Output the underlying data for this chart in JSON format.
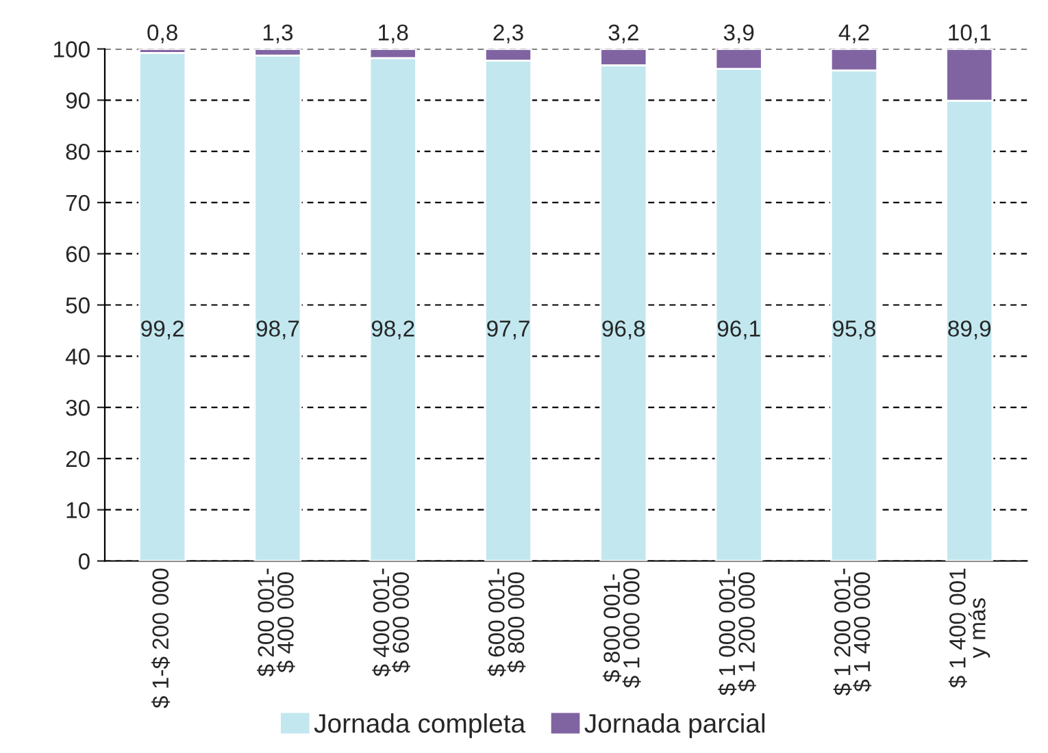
{
  "chart_data": {
    "type": "bar",
    "stacked": true,
    "categories": [
      "$ 1-$ 200 000",
      "$ 200 001-\n$ 400 000",
      "$ 400 001-\n$ 600 000",
      "$ 600 001-\n$ 800 000",
      "$ 800 001-\n$ 1 000 000",
      "$ 1 000 001-\n$ 1 200 000",
      "$ 1 200 001-\n$ 1 400 000",
      "$ 1 400 001\ny más"
    ],
    "series": [
      {
        "name": "Jornada completa",
        "color": "#c2e7ef",
        "values": [
          99.2,
          98.7,
          98.2,
          97.7,
          96.8,
          96.1,
          95.8,
          89.9
        ],
        "value_labels": [
          "99,2",
          "98,7",
          "98,2",
          "97,7",
          "96,8",
          "96,1",
          "95,8",
          "89,9"
        ]
      },
      {
        "name": "Jornada parcial",
        "color": "#8064a2",
        "values": [
          0.8,
          1.3,
          1.8,
          2.3,
          3.2,
          3.9,
          4.2,
          10.1
        ],
        "value_labels": [
          "0,8",
          "1,3",
          "1,8",
          "2,3",
          "3,2",
          "3,9",
          "4,2",
          "10,1"
        ]
      }
    ],
    "ylim": [
      0,
      100
    ],
    "yticks": [
      0,
      10,
      20,
      30,
      40,
      50,
      60,
      70,
      80,
      90,
      100
    ],
    "grid": "y",
    "legend": "bottom"
  }
}
